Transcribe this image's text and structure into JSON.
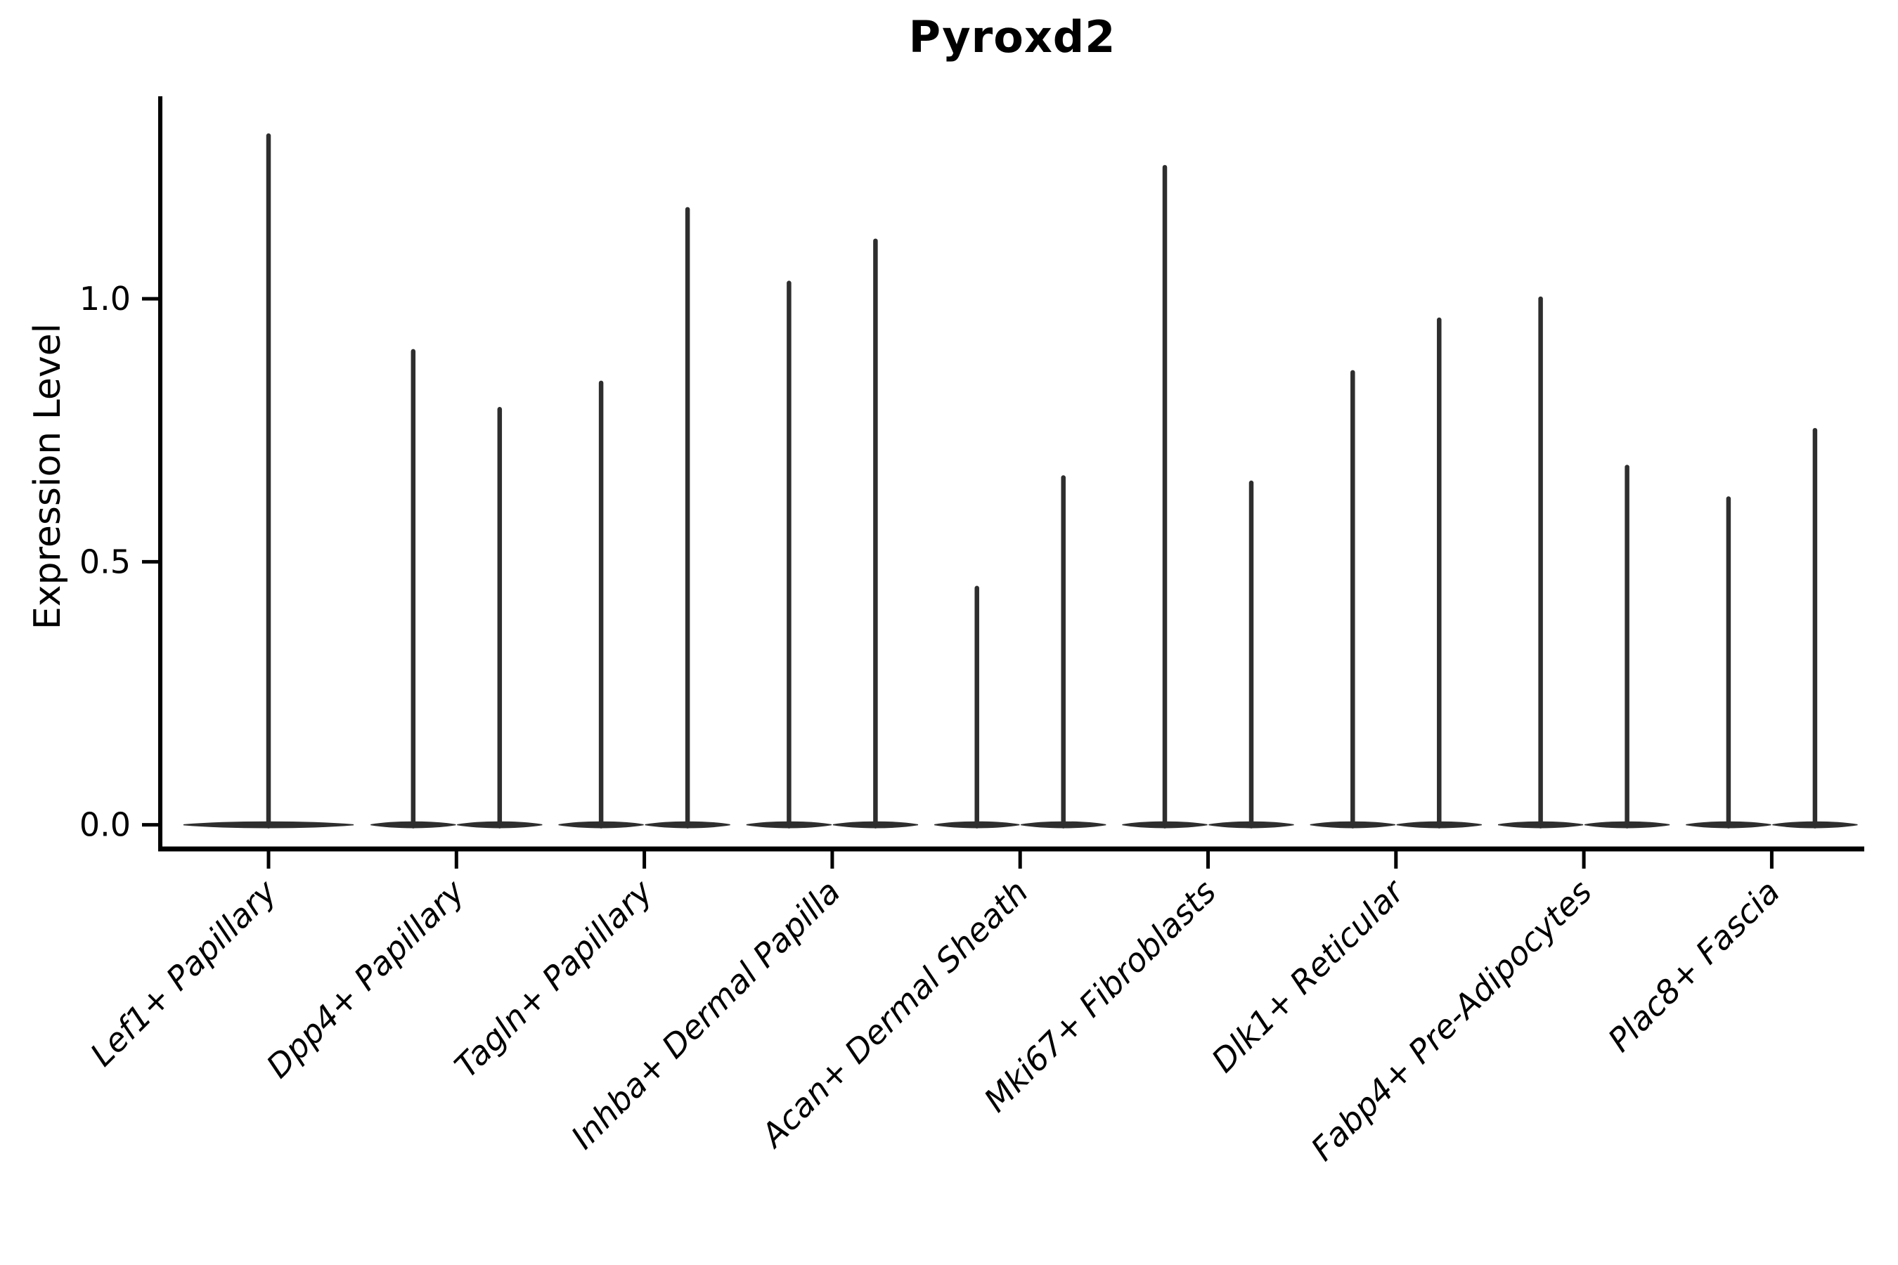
{
  "chart_data": {
    "type": "violin",
    "title": "Pyroxd2",
    "ylabel": "Expression Level",
    "xlabel": "",
    "ylim": [
      -0.046,
      1.385
    ],
    "yticks": [
      "0.0",
      "0.5",
      "1.0"
    ],
    "ytick_values": [
      0.0,
      0.5,
      1.0
    ],
    "grid": false,
    "legend": "none",
    "line_color": "#2e2e2e",
    "spine_color": "#000000",
    "categories": [
      {
        "label": "Lef1+ Papillary",
        "violin_maxes": [
          1.31
        ]
      },
      {
        "label": "Dpp4+ Papillary",
        "violin_maxes": [
          0.9,
          0.79
        ]
      },
      {
        "label": "Tagln+ Papillary",
        "violin_maxes": [
          0.84,
          1.17
        ]
      },
      {
        "label": "Inhba+ Dermal Papilla",
        "violin_maxes": [
          1.03,
          1.11
        ]
      },
      {
        "label": "Acan+ Dermal Sheath",
        "violin_maxes": [
          0.45,
          0.66
        ]
      },
      {
        "label": "Mki67+ Fibroblasts",
        "violin_maxes": [
          1.25,
          0.65
        ]
      },
      {
        "label": "Dlk1+ Reticular",
        "violin_maxes": [
          0.86,
          0.96
        ]
      },
      {
        "label": "Fabp4+ Pre-Adipocytes",
        "violin_maxes": [
          1.0,
          0.68
        ]
      },
      {
        "label": "Plac8+ Fascia",
        "violin_maxes": [
          0.62,
          0.75
        ]
      }
    ]
  }
}
